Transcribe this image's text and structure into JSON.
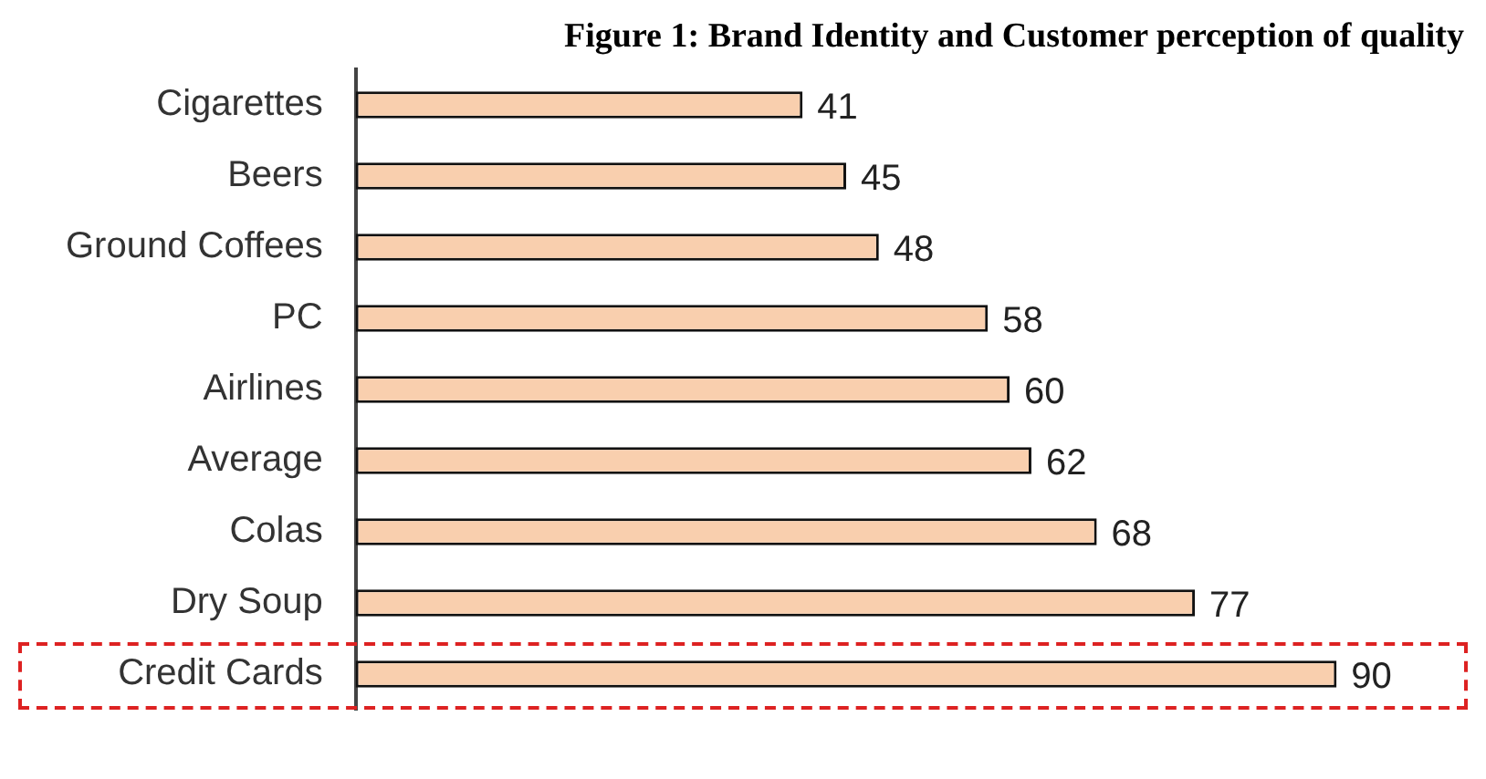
{
  "chart_data": {
    "type": "bar",
    "orientation": "horizontal",
    "title": "Figure 1: Brand Identity and Customer perception of quality",
    "categories": [
      "Cigarettes",
      "Beers",
      "Ground Coffees",
      "PC",
      "Airlines",
      "Average",
      "Colas",
      "Dry Soup",
      "Credit Cards"
    ],
    "values": [
      41,
      45,
      48,
      58,
      60,
      62,
      68,
      77,
      90
    ],
    "color": "#f9cfae",
    "data_labels": true,
    "grid": false,
    "legend": false
  }
}
